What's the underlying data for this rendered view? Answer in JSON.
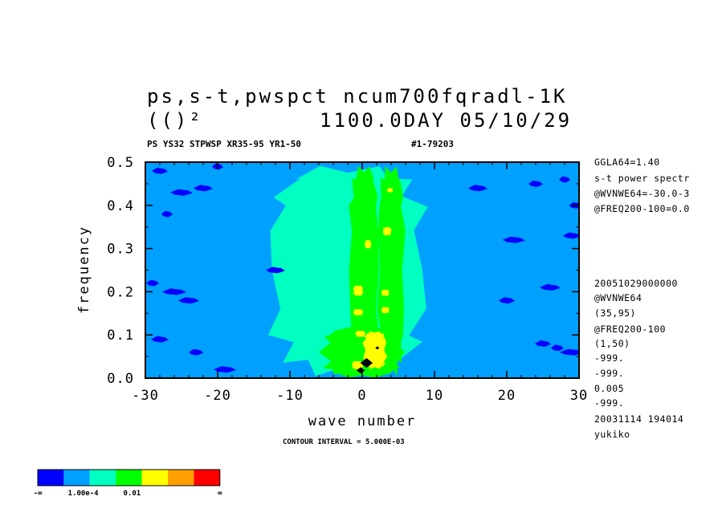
{
  "header": {
    "title_line1": "ps,s-t,pwspct ncum700fqradl-1K",
    "title_line2_left": "(()²",
    "title_line2_right": "1100.0DAY 05/10/29",
    "sub_left": "PS YS32 STPWSP XR35-95 YR1-50",
    "sub_right": "#1-79203"
  },
  "side_info": {
    "top": [
      "GGLA64=1.40",
      "s-t power spectr",
      "@WVNWE64=-30.0-3",
      "@FREQ200-100=0.0"
    ],
    "bottom": [
      "20051029000000",
      "@WVNWE64",
      "(35,95)",
      "@FREQ200-100",
      "(1,50)",
      "-999.",
      "-999.",
      "0.005",
      "-999.",
      "20031114 194014",
      "yukiko"
    ]
  },
  "contour_note": "CONTOUR INTERVAL = 5.000E-03",
  "colorbar": {
    "colors": [
      "#0000ff",
      "#00a0ff",
      "#00ffc0",
      "#00ff00",
      "#ffff00",
      "#ffa000",
      "#ff0000"
    ],
    "labels": [
      "-∞",
      "1.00e-4",
      "0.01",
      "∞"
    ]
  },
  "chart_data": {
    "type": "heatmap",
    "xlabel": "wave number",
    "ylabel": "frequency",
    "xlim": [
      -30,
      30
    ],
    "ylim": [
      0.0,
      0.5
    ],
    "xticks": [
      "-30",
      "-20",
      "-10",
      "0",
      "10",
      "20",
      "30"
    ],
    "yticks": [
      "0.0",
      "0.1",
      "0.2",
      "0.3",
      "0.4",
      "0.5"
    ],
    "levels": [
      {
        "index": 0,
        "color": "#0000ff",
        "description": "below 1.00e-4"
      },
      {
        "index": 1,
        "color": "#00a0ff",
        "description": "background"
      },
      {
        "index": 2,
        "color": "#00ffc0"
      },
      {
        "index": 3,
        "color": "#00ff00"
      },
      {
        "index": 4,
        "color": "#ffff00"
      },
      {
        "index": 5,
        "color": "#ffa000"
      },
      {
        "index": 6,
        "color": "#ff0000"
      }
    ],
    "regions": [
      {
        "level": 2,
        "x": [
          -14,
          10
        ],
        "y": [
          0.0,
          0.5
        ]
      },
      {
        "level": 3,
        "x": [
          -6,
          6
        ],
        "y": [
          0.0,
          0.12
        ]
      },
      {
        "level": 3,
        "x": [
          -2,
          2.5
        ],
        "y": [
          0.0,
          0.5
        ]
      },
      {
        "level": 3,
        "x": [
          2,
          6
        ],
        "y": [
          0.0,
          0.5
        ]
      },
      {
        "level": 4,
        "x": [
          0,
          3.5
        ],
        "y": [
          0.02,
          0.11
        ]
      },
      {
        "level": 4,
        "x": [
          -1.5,
          0.2
        ],
        "y": [
          0.02,
          0.04
        ]
      },
      {
        "level": 4,
        "x": [
          -1,
          0.5
        ],
        "y": [
          0.095,
          0.11
        ]
      },
      {
        "level": 4,
        "x": [
          -1.3,
          0.2
        ],
        "y": [
          0.145,
          0.16
        ]
      },
      {
        "level": 4,
        "x": [
          2.6,
          3.8
        ],
        "y": [
          0.15,
          0.165
        ]
      },
      {
        "level": 4,
        "x": [
          -1.3,
          0.2
        ],
        "y": [
          0.19,
          0.215
        ]
      },
      {
        "level": 4,
        "x": [
          2.6,
          3.8
        ],
        "y": [
          0.19,
          0.205
        ]
      },
      {
        "level": 4,
        "x": [
          0.3,
          1.3
        ],
        "y": [
          0.3,
          0.32
        ]
      },
      {
        "level": 4,
        "x": [
          2.8,
          4.1
        ],
        "y": [
          0.33,
          0.35
        ]
      },
      {
        "level": 4,
        "x": [
          3.4,
          4.3
        ],
        "y": [
          0.43,
          0.44
        ]
      }
    ],
    "blue_spots": [
      [
        -27,
        0.38
      ],
      [
        -25,
        0.43
      ],
      [
        -22,
        0.44
      ],
      [
        -28,
        0.48
      ],
      [
        -29,
        0.22
      ],
      [
        -26,
        0.2
      ],
      [
        -24,
        0.18
      ],
      [
        -28,
        0.09
      ],
      [
        -23,
        0.06
      ],
      [
        -20,
        0.49
      ],
      [
        -19,
        0.02
      ],
      [
        -12,
        0.25
      ],
      [
        25,
        0.08
      ],
      [
        27,
        0.07
      ],
      [
        29,
        0.06
      ],
      [
        26,
        0.21
      ],
      [
        29,
        0.33
      ],
      [
        24,
        0.45
      ],
      [
        28,
        0.46
      ],
      [
        21,
        0.32
      ],
      [
        16,
        0.44
      ],
      [
        20,
        0.18
      ],
      [
        29.5,
        0.4
      ]
    ],
    "black_spots": [
      [
        0.6,
        0.035
      ],
      [
        -0.2,
        0.018
      ],
      [
        2.1,
        0.07
      ]
    ]
  }
}
